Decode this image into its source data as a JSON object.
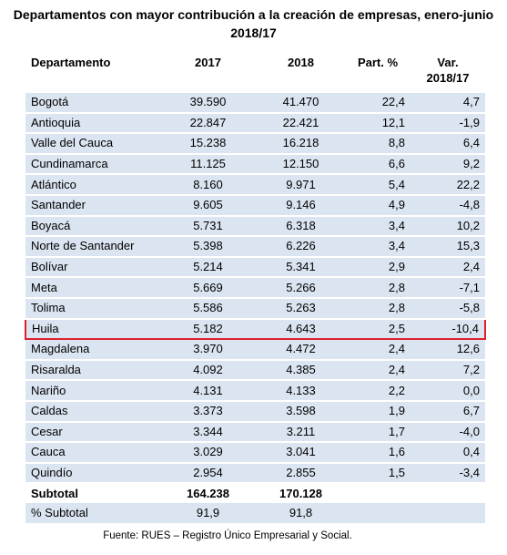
{
  "table": {
    "title": [
      "Departamentos con mayor contribución a la creación de empresas, enero-junio",
      "2018/17"
    ],
    "columns": [
      "Departamento",
      "2017",
      "2018",
      "Part. %",
      "Var. 2018/17"
    ],
    "rows": [
      [
        "Bogotá",
        "39.590",
        "41.470",
        "22,4",
        "4,7"
      ],
      [
        "Antioquia",
        "22.847",
        "22.421",
        "12,1",
        "-1,9"
      ],
      [
        "Valle del Cauca",
        "15.238",
        "16.218",
        "8,8",
        "6,4"
      ],
      [
        "Cundinamarca",
        "11.125",
        "12.150",
        "6,6",
        "9,2"
      ],
      [
        "Atlántico",
        "8.160",
        "9.971",
        "5,4",
        "22,2"
      ],
      [
        "Santander",
        "9.605",
        "9.146",
        "4,9",
        "-4,8"
      ],
      [
        "Boyacá",
        "5.731",
        "6.318",
        "3,4",
        "10,2"
      ],
      [
        "Norte de Santander",
        "5.398",
        "6.226",
        "3,4",
        "15,3"
      ],
      [
        "Bolívar",
        "5.214",
        "5.341",
        "2,9",
        "2,4"
      ],
      [
        "Meta",
        "5.669",
        "5.266",
        "2,8",
        "-7,1"
      ],
      [
        "Tolima",
        "5.586",
        "5.263",
        "2,8",
        "-5,8"
      ],
      [
        "Huila",
        "5.182",
        "4.643",
        "2,5",
        "-10,4"
      ],
      [
        "Magdalena",
        "3.970",
        "4.472",
        "2,4",
        "12,6"
      ],
      [
        "Risaralda",
        "4.092",
        "4.385",
        "2,4",
        "7,2"
      ],
      [
        "Nariño",
        "4.131",
        "4.133",
        "2,2",
        "0,0"
      ],
      [
        "Caldas",
        "3.373",
        "3.598",
        "1,9",
        "6,7"
      ],
      [
        "Cesar",
        "3.344",
        "3.211",
        "1,7",
        "-4,0"
      ],
      [
        "Cauca",
        "3.029",
        "3.041",
        "1,6",
        "0,4"
      ],
      [
        "Quindío",
        "2.954",
        "2.855",
        "1,5",
        "-3,4"
      ]
    ],
    "totals": [
      [
        "Subtotal",
        "164.238",
        "170.128"
      ],
      [
        "% Subtotal",
        "91,9",
        "91,8"
      ]
    ],
    "source": "Fuente: RUES – Registro Único Empresarial y Social."
  }
}
